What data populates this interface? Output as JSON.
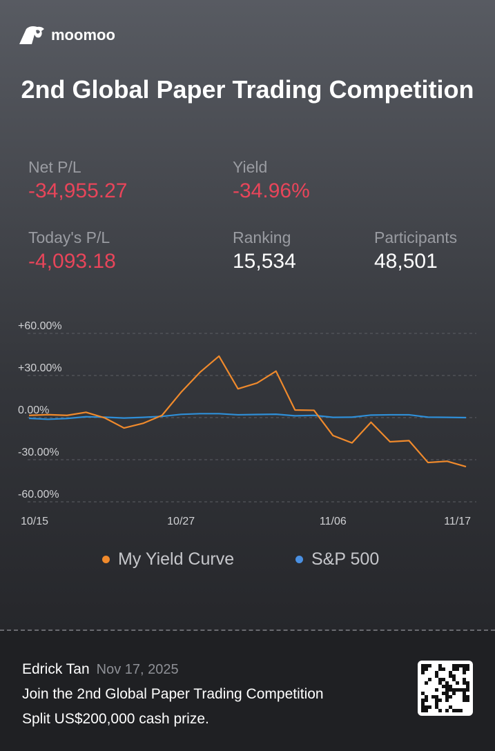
{
  "brand": {
    "name": "moomoo"
  },
  "title": "2nd Global Paper Trading Competition",
  "stats": {
    "net_pl": {
      "label": "Net P/L",
      "value": "-34,955.27"
    },
    "yield": {
      "label": "Yield",
      "value": "-34.96%"
    },
    "todays_pl": {
      "label": "Today's P/L",
      "value": "-4,093.18"
    },
    "ranking": {
      "label": "Ranking",
      "value": "15,534"
    },
    "participants": {
      "label": "Participants",
      "value": "48,501"
    }
  },
  "colors": {
    "loss": "#e8455a",
    "my_curve": "#f08a2c",
    "sp500": "#2f8fd8"
  },
  "chart_data": {
    "type": "line",
    "yticks": [
      "+60.00%",
      "+30.00%",
      "0.00%",
      "-30.00%",
      "-60.00%"
    ],
    "ylim": [
      -60,
      60
    ],
    "xticks": [
      "10/15",
      "10/27",
      "11/06",
      "11/17"
    ],
    "x": [
      "10/15",
      "10/16",
      "10/17",
      "10/20",
      "10/21",
      "10/22",
      "10/23",
      "10/24",
      "10/27",
      "10/28",
      "10/29",
      "10/30",
      "10/31",
      "11/03",
      "11/04",
      "11/05",
      "11/06",
      "11/07",
      "11/10",
      "11/11",
      "11/12",
      "11/13",
      "11/14",
      "11/17"
    ],
    "grid": true,
    "legend_placement": "bottom",
    "series": [
      {
        "name": "My Yield Curve",
        "color": "#f08a2c",
        "values": [
          1.6,
          2.1,
          1.6,
          3.8,
          -0.3,
          -7.4,
          -4.1,
          1.6,
          18,
          32.3,
          43.8,
          20.5,
          24.6,
          33.1,
          5.4,
          5.2,
          -12.8,
          -18,
          -3.3,
          -17.2,
          -16.4,
          -32,
          -31.1,
          -34.96
        ]
      },
      {
        "name": "S&P 500",
        "color": "#2f8fd8",
        "values": [
          -0.5,
          -1.2,
          -0.6,
          0.6,
          0.3,
          -0.3,
          0.2,
          0.9,
          2.3,
          2.8,
          2.8,
          2,
          2.2,
          2.4,
          1.3,
          1.6,
          0.2,
          0.3,
          1.8,
          2,
          2,
          0.3,
          0.2,
          0
        ]
      }
    ]
  },
  "footer": {
    "user": "Edrick Tan",
    "date": "Nov 17, 2025",
    "line1": "Join the 2nd Global Paper Trading Competition",
    "line2": "Split US$200,000 cash prize."
  }
}
